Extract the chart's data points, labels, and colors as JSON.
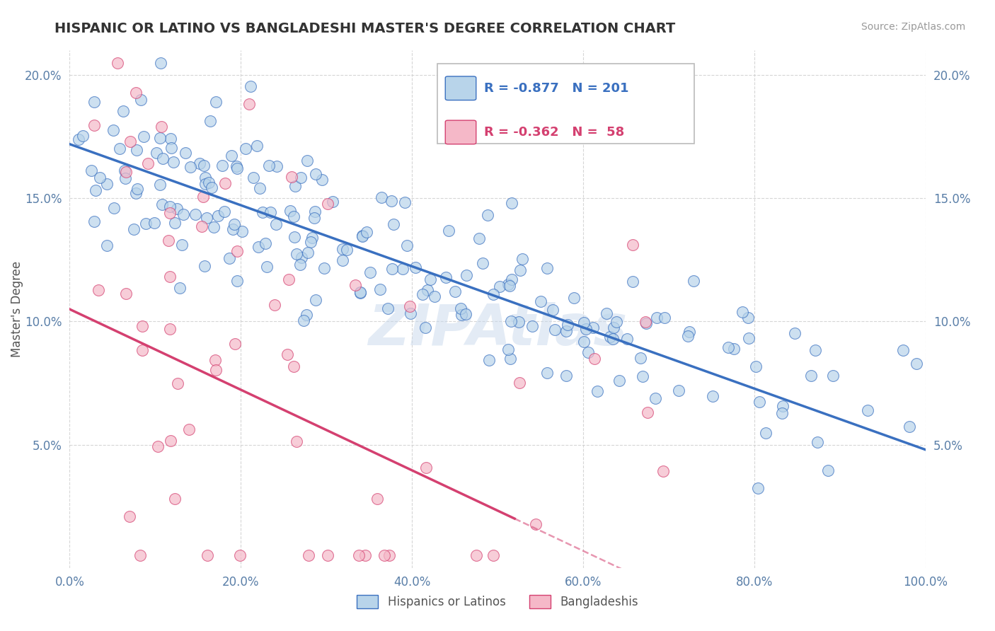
{
  "title": "HISPANIC OR LATINO VS BANGLADESHI MASTER'S DEGREE CORRELATION CHART",
  "source_text": "Source: ZipAtlas.com",
  "ylabel": "Master's Degree",
  "xlim": [
    0.0,
    1.0
  ],
  "ylim": [
    0.0,
    0.21
  ],
  "xtick_labels": [
    "0.0%",
    "20.0%",
    "40.0%",
    "60.0%",
    "80.0%",
    "100.0%"
  ],
  "xtick_vals": [
    0.0,
    0.2,
    0.4,
    0.6,
    0.8,
    1.0
  ],
  "ytick_labels": [
    "5.0%",
    "10.0%",
    "15.0%",
    "20.0%"
  ],
  "ytick_vals": [
    0.05,
    0.1,
    0.15,
    0.2
  ],
  "blue_R": -0.877,
  "blue_N": 201,
  "pink_R": -0.362,
  "pink_N": 58,
  "blue_color": "#b8d4ea",
  "blue_line_color": "#3a70c0",
  "pink_color": "#f5b8c8",
  "pink_line_color": "#d44070",
  "legend_blue_label": "Hispanics or Latinos",
  "legend_pink_label": "Bangladeshis",
  "watermark": "ZIPAtlas",
  "background_color": "#ffffff",
  "grid_color": "#cccccc",
  "title_color": "#333333",
  "blue_line_x0": 0.0,
  "blue_line_y0": 0.172,
  "blue_line_x1": 1.0,
  "blue_line_y1": 0.048,
  "pink_line_x0": 0.0,
  "pink_line_y0": 0.105,
  "pink_line_x1": 0.52,
  "pink_line_y1": 0.02,
  "pink_line_dash_x0": 0.52,
  "pink_line_dash_x1": 0.75,
  "blue_seed": 99,
  "pink_seed": 42
}
